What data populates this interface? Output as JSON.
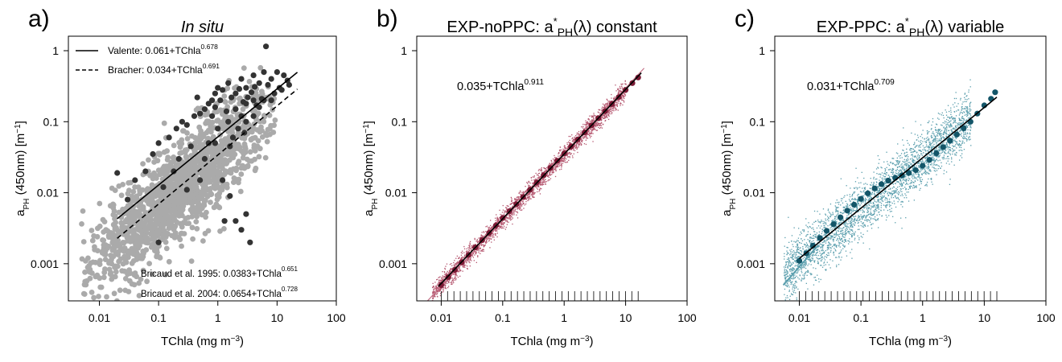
{
  "chart_data": [
    {
      "panel_label": "a)",
      "title": "In situ",
      "type": "scatter",
      "x_scale": "log",
      "y_scale": "log",
      "xlim": [
        0.003,
        100
      ],
      "ylim": [
        0.0003,
        1.6
      ],
      "x_ticks": [
        0.01,
        0.1,
        1,
        10,
        100
      ],
      "x_tick_labels": [
        "0.01",
        "0.1",
        "1",
        "10",
        "100"
      ],
      "y_ticks": [
        0.001,
        0.01,
        0.1,
        1
      ],
      "y_tick_labels": [
        "0.001",
        "0.01",
        "0.1",
        "1"
      ],
      "xlabel": "TChla (mg m",
      "xlabel_sup": "−3",
      "xlabel_end": ")",
      "ylabel_main": "a",
      "ylabel_sub": "PH",
      "ylabel_rest": " (450nm) [m",
      "ylabel_sup": "−1",
      "ylabel_end": "]",
      "legend": [
        {
          "label": "Valente: 0.061+TChla",
          "exponent": "0.678",
          "linestyle": "solid"
        },
        {
          "label": "Bracher: 0.034+TChla",
          "exponent": "0.691",
          "linestyle": "dashed"
        }
      ],
      "annotations": [
        {
          "text": "Bricaud et al. 1995: 0.0383+TChla",
          "exponent": "0.651"
        },
        {
          "text": "Bricaud et al. 2004: 0.0654+TChla",
          "exponent": "0.728"
        }
      ],
      "fit_lines": [
        {
          "name": "Valente",
          "a": 0.061,
          "b": 0.678,
          "x_range": [
            0.02,
            22
          ],
          "style": "solid",
          "color": "#000000"
        },
        {
          "name": "Bracher",
          "a": 0.034,
          "b": 0.691,
          "x_range": [
            0.02,
            22
          ],
          "style": "dashed",
          "color": "#000000"
        }
      ],
      "cloud": {
        "a": 0.034,
        "b": 0.72,
        "x_range": [
          0.005,
          10
        ],
        "spread_log10": 0.35,
        "n": 1600,
        "color": "#aaaaaa",
        "size": "large"
      },
      "series_points": [
        {
          "color": "#333333",
          "points": [
            [
              0.02,
              0.019
            ],
            [
              0.03,
              0.008
            ],
            [
              0.04,
              0.015
            ],
            [
              0.06,
              0.02
            ],
            [
              0.08,
              0.035
            ],
            [
              0.1,
              0.05
            ],
            [
              0.1,
              0.002
            ],
            [
              0.15,
              0.06
            ],
            [
              0.2,
              0.08
            ],
            [
              0.25,
              0.1
            ],
            [
              0.3,
              0.09
            ],
            [
              0.4,
              0.12
            ],
            [
              0.5,
              0.13
            ],
            [
              0.6,
              0.15
            ],
            [
              0.7,
              0.18
            ],
            [
              0.8,
              0.2
            ],
            [
              0.9,
              0.25
            ],
            [
              1,
              0.3
            ],
            [
              1.2,
              0.28
            ],
            [
              1.5,
              0.35
            ],
            [
              2,
              0.25
            ],
            [
              2.5,
              0.4
            ],
            [
              3,
              0.3
            ],
            [
              4,
              0.45
            ],
            [
              5,
              0.35
            ],
            [
              6,
              0.5
            ],
            [
              1,
              0.08
            ],
            [
              1.5,
              0.1
            ],
            [
              2,
              0.15
            ],
            [
              2.5,
              0.12
            ],
            [
              3,
              0.18
            ],
            [
              4,
              0.2
            ],
            [
              1.8,
              0.06
            ],
            [
              2.2,
              0.08
            ],
            [
              3,
              0.1
            ],
            [
              0.6,
              0.03
            ],
            [
              0.9,
              0.05
            ],
            [
              1.2,
              0.015
            ],
            [
              2,
              0.004
            ],
            [
              2.5,
              0.003
            ],
            [
              3,
              0.005
            ],
            [
              3.5,
              0.002
            ],
            [
              0.5,
              0.015
            ],
            [
              0.3,
              0.011
            ],
            [
              1.1,
              0.2
            ],
            [
              1.7,
              0.22
            ],
            [
              2.7,
              0.19
            ],
            [
              3.7,
              0.26
            ],
            [
              4.5,
              0.17
            ],
            [
              5.5,
              0.21
            ],
            [
              7,
              0.33
            ],
            [
              8,
              0.4
            ],
            [
              10,
              0.5
            ],
            [
              13,
              0.45
            ],
            [
              16,
              0.33
            ],
            [
              6.5,
              1.15
            ],
            [
              12,
              0.28
            ],
            [
              0.45,
              0.22
            ],
            [
              0.8,
              0.12
            ],
            [
              1.4,
              0.14
            ],
            [
              2.3,
              0.29
            ],
            [
              3.2,
              0.22
            ],
            [
              4.2,
              0.31
            ],
            [
              0.7,
              0.05
            ],
            [
              1.6,
              0.045
            ],
            [
              0.35,
              0.045
            ],
            [
              0.22,
              0.03
            ],
            [
              0.12,
              0.012
            ],
            [
              0.18,
              0.02
            ],
            [
              2.8,
              0.07
            ],
            [
              4,
              0.12
            ],
            [
              5,
              0.16
            ],
            [
              6,
              0.2
            ],
            [
              8,
              0.2
            ],
            [
              9,
              0.25
            ],
            [
              11,
              0.3
            ],
            [
              15,
              0.38
            ],
            [
              1.3,
              0.004
            ],
            [
              1.6,
              0.009
            ],
            [
              0.9,
              0.16
            ]
          ]
        }
      ]
    },
    {
      "panel_label": "b)",
      "title": "EXP-noPPC: a",
      "title_sup": "*",
      "title_sub": "PH",
      "title_rest": "(λ) constant",
      "type": "scatter",
      "x_scale": "log",
      "y_scale": "log",
      "xlim": [
        0.004,
        100
      ],
      "ylim": [
        0.0003,
        1.6
      ],
      "x_ticks": [
        0.01,
        0.1,
        1,
        10,
        100
      ],
      "x_tick_labels": [
        "0.01",
        "0.1",
        "1",
        "10",
        "100"
      ],
      "y_ticks": [
        0.001,
        0.01,
        0.1,
        1
      ],
      "y_tick_labels": [
        "0.001",
        "0.01",
        "0.1",
        "1"
      ],
      "xlabel": "TChla (mg m",
      "xlabel_sup": "−3",
      "xlabel_end": ")",
      "ylabel_main": "a",
      "ylabel_sub": "PH",
      "ylabel_rest": " (450nm) [m",
      "ylabel_sup": "−1",
      "ylabel_end": "]",
      "annotations": [
        {
          "text": "0.035+TChla",
          "exponent": "0.911"
        }
      ],
      "fit_lines": [
        {
          "name": "fit",
          "a": 0.035,
          "b": 0.911,
          "x_range": [
            0.009,
            18
          ],
          "style": "solid",
          "color": "#000000"
        }
      ],
      "cloud": {
        "a": 0.035,
        "b": 0.911,
        "x_range": [
          0.007,
          10
        ],
        "spread_log10": 0.07,
        "n": 2600,
        "color": "#b5566f",
        "size": "small"
      },
      "series_points": [
        {
          "color": "#7a1a35",
          "points": [
            [
              0.01,
              0.0005
            ],
            [
              0.013,
              0.00065
            ],
            [
              0.0166,
              0.00082
            ],
            [
              0.0215,
              0.00105
            ],
            [
              0.0278,
              0.00133
            ],
            [
              0.036,
              0.0017
            ],
            [
              0.0464,
              0.00215
            ],
            [
              0.06,
              0.00272
            ],
            [
              0.0774,
              0.00345
            ],
            [
              0.1,
              0.0044
            ],
            [
              0.129,
              0.0055
            ],
            [
              0.167,
              0.0069
            ],
            [
              0.215,
              0.0087
            ],
            [
              0.278,
              0.011
            ],
            [
              0.359,
              0.0139
            ],
            [
              0.464,
              0.0176
            ],
            [
              0.599,
              0.0223
            ],
            [
              0.774,
              0.0282
            ],
            [
              1,
              0.0356
            ],
            [
              1.29,
              0.0447
            ],
            [
              1.67,
              0.0563
            ],
            [
              2.15,
              0.0707
            ],
            [
              2.78,
              0.089
            ],
            [
              3.59,
              0.112
            ],
            [
              4.64,
              0.141
            ],
            [
              5.99,
              0.177
            ],
            [
              7.74,
              0.222
            ],
            [
              10,
              0.28
            ],
            [
              12.9,
              0.35
            ],
            [
              16,
              0.42
            ]
          ]
        }
      ],
      "rug": {
        "x_from": 0.01,
        "x_to": 16,
        "count": 32
      }
    },
    {
      "panel_label": "c)",
      "title": "EXP-PPC: a",
      "title_sup": "*",
      "title_sub": "PH",
      "title_rest": "(λ) variable",
      "type": "scatter",
      "x_scale": "log",
      "y_scale": "log",
      "xlim": [
        0.004,
        100
      ],
      "ylim": [
        0.0003,
        1.6
      ],
      "x_ticks": [
        0.01,
        0.1,
        1,
        10,
        100
      ],
      "x_tick_labels": [
        "0.01",
        "0.1",
        "1",
        "10",
        "100"
      ],
      "y_ticks": [
        0.001,
        0.01,
        0.1,
        1
      ],
      "y_tick_labels": [
        "0.001",
        "0.01",
        "0.1",
        "1"
      ],
      "xlabel": "TChla (mg m",
      "xlabel_sup": "−3",
      "xlabel_end": ")",
      "ylabel_main": "a",
      "ylabel_sub": "PH",
      "ylabel_rest": " (450nm) [m",
      "ylabel_sup": "−1",
      "ylabel_end": "]",
      "annotations": [
        {
          "text": "0.031+TChla",
          "exponent": "0.709"
        }
      ],
      "fit_lines": [
        {
          "name": "fit",
          "a": 0.031,
          "b": 0.709,
          "x_range": [
            0.01,
            16
          ],
          "style": "solid",
          "color": "#000000"
        }
      ],
      "cloud": {
        "a": 0.031,
        "b": 0.72,
        "x_range": [
          0.0055,
          6
        ],
        "spread_log10": 0.2,
        "n": 3200,
        "color": "#5a9ead",
        "size": "small"
      },
      "series_points": [
        {
          "color": "#135568",
          "points": [
            [
              0.01,
              0.0011
            ],
            [
              0.013,
              0.0014
            ],
            [
              0.0166,
              0.0018
            ],
            [
              0.0215,
              0.0023
            ],
            [
              0.0278,
              0.0029
            ],
            [
              0.036,
              0.0036
            ],
            [
              0.0464,
              0.0045
            ],
            [
              0.06,
              0.0056
            ],
            [
              0.0774,
              0.0068
            ],
            [
              0.1,
              0.0082
            ],
            [
              0.129,
              0.0098
            ],
            [
              0.167,
              0.0115
            ],
            [
              0.215,
              0.0132
            ],
            [
              0.278,
              0.0148
            ],
            [
              0.359,
              0.0162
            ],
            [
              0.464,
              0.0176
            ],
            [
              0.599,
              0.019
            ],
            [
              0.774,
              0.0208
            ],
            [
              1,
              0.024
            ],
            [
              1.29,
              0.029
            ],
            [
              1.67,
              0.036
            ],
            [
              2.15,
              0.044
            ],
            [
              2.78,
              0.054
            ],
            [
              3.59,
              0.066
            ],
            [
              4.64,
              0.081
            ],
            [
              5.99,
              0.1
            ],
            [
              7.74,
              0.13
            ],
            [
              10,
              0.17
            ],
            [
              12.9,
              0.21
            ],
            [
              15,
              0.26
            ]
          ]
        }
      ],
      "rug": {
        "x_from": 0.01,
        "x_to": 16,
        "count": 32
      }
    }
  ]
}
